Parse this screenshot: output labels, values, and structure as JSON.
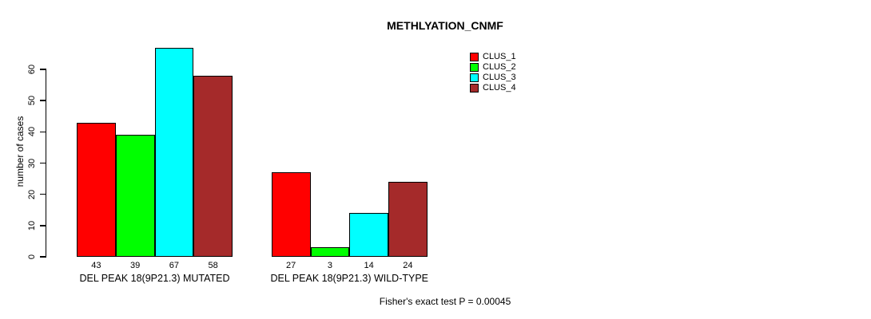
{
  "chart_data": {
    "type": "bar",
    "title": "METHLYATION_CNMF",
    "xlabel": "",
    "ylabel": "number of cases",
    "categories": [
      "DEL PEAK 18(9P21.3) MUTATED",
      "DEL PEAK 18(9P21.3) WILD-TYPE"
    ],
    "series": [
      {
        "name": "CLUS_1",
        "color": "#FF0000",
        "values": [
          43,
          27
        ]
      },
      {
        "name": "CLUS_2",
        "color": "#00FF00",
        "values": [
          39,
          3
        ]
      },
      {
        "name": "CLUS_3",
        "color": "#00FFFF",
        "values": [
          67,
          14
        ]
      },
      {
        "name": "CLUS_4",
        "color": "#A52A2A",
        "values": [
          58,
          24
        ]
      }
    ],
    "yticks": [
      0,
      10,
      20,
      30,
      40,
      50,
      60
    ],
    "ylim": [
      0,
      67.5
    ],
    "grid": false,
    "legend_position": "top-right",
    "show_value_labels": true,
    "annotation": "Fisher's exact test P = 0.00045",
    "colors": {
      "background": "#FFFFFF",
      "axis": "#000000",
      "text": "#000000"
    }
  }
}
